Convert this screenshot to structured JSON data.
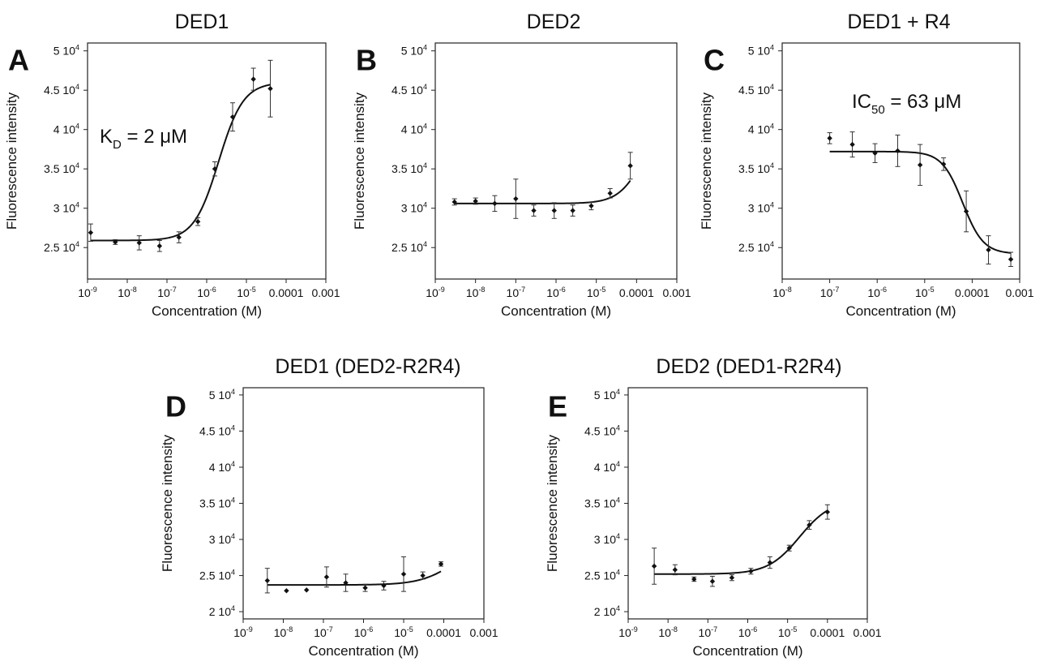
{
  "figure": {
    "panels": [
      {
        "id": "A",
        "letter": "A",
        "chart_data": {
          "type": "scatter",
          "title": "DED1",
          "xlabel": "Concentration (M)",
          "ylabel": "Fluorescence intensity",
          "xscale": "log",
          "xlim_log10": [
            -9,
            -3
          ],
          "ylim": [
            21000,
            51000
          ],
          "x_ticks": [
            {
              "base": "10",
              "exp": "-9"
            },
            {
              "base": "10",
              "exp": "-8"
            },
            {
              "base": "10",
              "exp": "-7"
            },
            {
              "base": "10",
              "exp": "-6"
            },
            {
              "base": "10",
              "exp": "-5"
            },
            {
              "text": "0.0001"
            },
            {
              "text": "0.001"
            }
          ],
          "y_ticks": [
            {
              "value": 25000,
              "mant": "2.5 10",
              "exp": "4"
            },
            {
              "value": 30000,
              "mant": "3 10",
              "exp": "4"
            },
            {
              "value": 35000,
              "mant": "3.5 10",
              "exp": "4"
            },
            {
              "value": 40000,
              "mant": "4 10",
              "exp": "4"
            },
            {
              "value": 45000,
              "mant": "4.5 10",
              "exp": "4"
            },
            {
              "value": 50000,
              "mant": "5 10",
              "exp": "4"
            }
          ],
          "points": [
            {
              "x": 1.2e-09,
              "y": 26900,
              "err": 1100
            },
            {
              "x": 5e-09,
              "y": 25700,
              "err": 300
            },
            {
              "x": 2e-08,
              "y": 25600,
              "err": 900
            },
            {
              "x": 6.5e-08,
              "y": 25200,
              "err": 700
            },
            {
              "x": 2e-07,
              "y": 26300,
              "err": 700
            },
            {
              "x": 6e-07,
              "y": 28300,
              "err": 500
            },
            {
              "x": 1.6e-06,
              "y": 35000,
              "err": 900
            },
            {
              "x": 4.5e-06,
              "y": 41600,
              "err": 1800
            },
            {
              "x": 1.5e-05,
              "y": 46400,
              "err": 1400
            },
            {
              "x": 4e-05,
              "y": 45200,
              "err": 3600
            }
          ],
          "fit": {
            "kind": "binding",
            "bottom": 25900,
            "top": 46000,
            "center": 2e-06,
            "hill": 1.4,
            "from": 1.2e-09,
            "to": 4e-05
          },
          "annotation": {
            "main": "K",
            "sub": "D",
            "rest": " = 2 μM"
          }
        }
      },
      {
        "id": "B",
        "letter": "B",
        "chart_data": {
          "type": "scatter",
          "title": "DED2",
          "xlabel": "Concentration (M)",
          "ylabel": "Fluorescence intensity",
          "xscale": "log",
          "xlim_log10": [
            -9,
            -3
          ],
          "ylim": [
            21000,
            51000
          ],
          "x_ticks": [
            {
              "base": "10",
              "exp": "-9"
            },
            {
              "base": "10",
              "exp": "-8"
            },
            {
              "base": "10",
              "exp": "-7"
            },
            {
              "base": "10",
              "exp": "-6"
            },
            {
              "base": "10",
              "exp": "-5"
            },
            {
              "text": "0.0001"
            },
            {
              "text": "0.001"
            }
          ],
          "y_ticks": [
            {
              "value": 25000,
              "mant": "2.5 10",
              "exp": "4"
            },
            {
              "value": 30000,
              "mant": "3 10",
              "exp": "4"
            },
            {
              "value": 35000,
              "mant": "3.5 10",
              "exp": "4"
            },
            {
              "value": 40000,
              "mant": "4 10",
              "exp": "4"
            },
            {
              "value": 45000,
              "mant": "4.5 10",
              "exp": "4"
            },
            {
              "value": 50000,
              "mant": "5 10",
              "exp": "4"
            }
          ],
          "points": [
            {
              "x": 3e-09,
              "y": 30800,
              "err": 400
            },
            {
              "x": 1e-08,
              "y": 30900,
              "err": 400
            },
            {
              "x": 3e-08,
              "y": 30600,
              "err": 1000
            },
            {
              "x": 1e-07,
              "y": 31200,
              "err": 2500
            },
            {
              "x": 2.8e-07,
              "y": 29700,
              "err": 700
            },
            {
              "x": 9e-07,
              "y": 29700,
              "err": 1000
            },
            {
              "x": 2.6e-06,
              "y": 29700,
              "err": 700
            },
            {
              "x": 7.5e-06,
              "y": 30300,
              "err": 500
            },
            {
              "x": 2.2e-05,
              "y": 31900,
              "err": 600
            },
            {
              "x": 7e-05,
              "y": 35400,
              "err": 1700
            }
          ],
          "fit": {
            "kind": "binding",
            "bottom": 30600,
            "top": 42000,
            "center": 0.00015,
            "hill": 1.4,
            "from": 3e-09,
            "to": 7e-05
          }
        }
      },
      {
        "id": "C",
        "letter": "C",
        "chart_data": {
          "type": "scatter",
          "title": "DED1 + R4",
          "xlabel": "Concentration (M)",
          "ylabel": "Fluorescence intensity",
          "xscale": "log",
          "xlim_log10": [
            -8,
            -3
          ],
          "ylim": [
            21000,
            51000
          ],
          "x_ticks": [
            {
              "base": "10",
              "exp": "-8"
            },
            {
              "base": "10",
              "exp": "-7"
            },
            {
              "base": "10",
              "exp": "-6"
            },
            {
              "base": "10",
              "exp": "-5"
            },
            {
              "text": "0.0001"
            },
            {
              "text": "0.001"
            }
          ],
          "y_ticks": [
            {
              "value": 25000,
              "mant": "2.5 10",
              "exp": "4"
            },
            {
              "value": 30000,
              "mant": "3 10",
              "exp": "4"
            },
            {
              "value": 35000,
              "mant": "3.5 10",
              "exp": "4"
            },
            {
              "value": 40000,
              "mant": "4 10",
              "exp": "4"
            },
            {
              "value": 45000,
              "mant": "4.5 10",
              "exp": "4"
            },
            {
              "value": 50000,
              "mant": "5 10",
              "exp": "4"
            }
          ],
          "points": [
            {
              "x": 1e-07,
              "y": 38900,
              "err": 700
            },
            {
              "x": 3e-07,
              "y": 38100,
              "err": 1600
            },
            {
              "x": 9e-07,
              "y": 37000,
              "err": 1200
            },
            {
              "x": 2.7e-06,
              "y": 37300,
              "err": 2000
            },
            {
              "x": 8e-06,
              "y": 35500,
              "err": 2600
            },
            {
              "x": 2.5e-05,
              "y": 35600,
              "err": 800
            },
            {
              "x": 7.5e-05,
              "y": 29600,
              "err": 2600
            },
            {
              "x": 0.00022,
              "y": 24700,
              "err": 1800
            },
            {
              "x": 0.00065,
              "y": 23500,
              "err": 900
            }
          ],
          "fit": {
            "kind": "inhibition",
            "bottom": 24200,
            "top": 37200,
            "center": 6.3e-05,
            "hill": 2.0,
            "from": 1e-07,
            "to": 0.00065
          },
          "annotation": {
            "main": "IC",
            "sub": "50",
            "rest": " = 63 μM"
          }
        }
      },
      {
        "id": "D",
        "letter": "D",
        "chart_data": {
          "type": "scatter",
          "title": "DED1 (DED2-R2R4)",
          "xlabel": "Concentration (M)",
          "ylabel": "Fluorescence intensity",
          "xscale": "log",
          "xlim_log10": [
            -9,
            -3
          ],
          "ylim": [
            19000,
            51000
          ],
          "x_ticks": [
            {
              "base": "10",
              "exp": "-9"
            },
            {
              "base": "10",
              "exp": "-8"
            },
            {
              "base": "10",
              "exp": "-7"
            },
            {
              "base": "10",
              "exp": "-6"
            },
            {
              "base": "10",
              "exp": "-5"
            },
            {
              "text": "0.0001"
            },
            {
              "text": "0.001"
            }
          ],
          "y_ticks": [
            {
              "value": 20000,
              "mant": "2 10",
              "exp": "4"
            },
            {
              "value": 25000,
              "mant": "2.5 10",
              "exp": "4"
            },
            {
              "value": 30000,
              "mant": "3 10",
              "exp": "4"
            },
            {
              "value": 35000,
              "mant": "3.5 10",
              "exp": "4"
            },
            {
              "value": 40000,
              "mant": "4 10",
              "exp": "4"
            },
            {
              "value": 45000,
              "mant": "4.5 10",
              "exp": "4"
            },
            {
              "value": 50000,
              "mant": "5 10",
              "exp": "4"
            }
          ],
          "points": [
            {
              "x": 4e-09,
              "y": 24300,
              "err": 1700
            },
            {
              "x": 1.2e-08,
              "y": 22900,
              "err": 0
            },
            {
              "x": 3.8e-08,
              "y": 23000,
              "err": 0
            },
            {
              "x": 1.2e-07,
              "y": 24800,
              "err": 1400
            },
            {
              "x": 3.6e-07,
              "y": 24000,
              "err": 1200
            },
            {
              "x": 1.1e-06,
              "y": 23300,
              "err": 500
            },
            {
              "x": 3.2e-06,
              "y": 23600,
              "err": 600
            },
            {
              "x": 1e-05,
              "y": 25200,
              "err": 2400
            },
            {
              "x": 3e-05,
              "y": 25000,
              "err": 500
            },
            {
              "x": 8.5e-05,
              "y": 26600,
              "err": 300
            }
          ],
          "fit": {
            "kind": "binding",
            "bottom": 23700,
            "top": 30000,
            "center": 0.0002,
            "hill": 1.0,
            "from": 4e-09,
            "to": 8.5e-05
          }
        }
      },
      {
        "id": "E",
        "letter": "E",
        "chart_data": {
          "type": "scatter",
          "title": "DED2 (DED1-R2R4)",
          "xlabel": "Concentration (M)",
          "ylabel": "Fluorescence intensity",
          "xscale": "log",
          "xlim_log10": [
            -9,
            -3
          ],
          "ylim": [
            19000,
            51000
          ],
          "x_ticks": [
            {
              "base": "10",
              "exp": "-9"
            },
            {
              "base": "10",
              "exp": "-8"
            },
            {
              "base": "10",
              "exp": "-7"
            },
            {
              "base": "10",
              "exp": "-6"
            },
            {
              "base": "10",
              "exp": "-5"
            },
            {
              "text": "0.0001"
            },
            {
              "text": "0.001"
            }
          ],
          "y_ticks": [
            {
              "value": 20000,
              "mant": "2 10",
              "exp": "4"
            },
            {
              "value": 25000,
              "mant": "2.5 10",
              "exp": "4"
            },
            {
              "value": 30000,
              "mant": "3 10",
              "exp": "4"
            },
            {
              "value": 35000,
              "mant": "3.5 10",
              "exp": "4"
            },
            {
              "value": 40000,
              "mant": "4 10",
              "exp": "4"
            },
            {
              "value": 45000,
              "mant": "4.5 10",
              "exp": "4"
            },
            {
              "value": 50000,
              "mant": "5 10",
              "exp": "4"
            }
          ],
          "points": [
            {
              "x": 4.5e-09,
              "y": 26300,
              "err": 2500
            },
            {
              "x": 1.5e-08,
              "y": 25800,
              "err": 700
            },
            {
              "x": 4.5e-08,
              "y": 24500,
              "err": 300
            },
            {
              "x": 1.3e-07,
              "y": 24200,
              "err": 700
            },
            {
              "x": 4e-07,
              "y": 24700,
              "err": 400
            },
            {
              "x": 1.2e-06,
              "y": 25600,
              "err": 400
            },
            {
              "x": 3.6e-06,
              "y": 26800,
              "err": 800
            },
            {
              "x": 1.1e-05,
              "y": 28800,
              "err": 400
            },
            {
              "x": 3.5e-05,
              "y": 32000,
              "err": 600
            },
            {
              "x": 0.0001,
              "y": 33800,
              "err": 1000
            }
          ],
          "fit": {
            "kind": "binding",
            "bottom": 25200,
            "top": 35500,
            "center": 2e-05,
            "hill": 1.1,
            "from": 4.5e-09,
            "to": 0.0001
          }
        }
      }
    ]
  }
}
